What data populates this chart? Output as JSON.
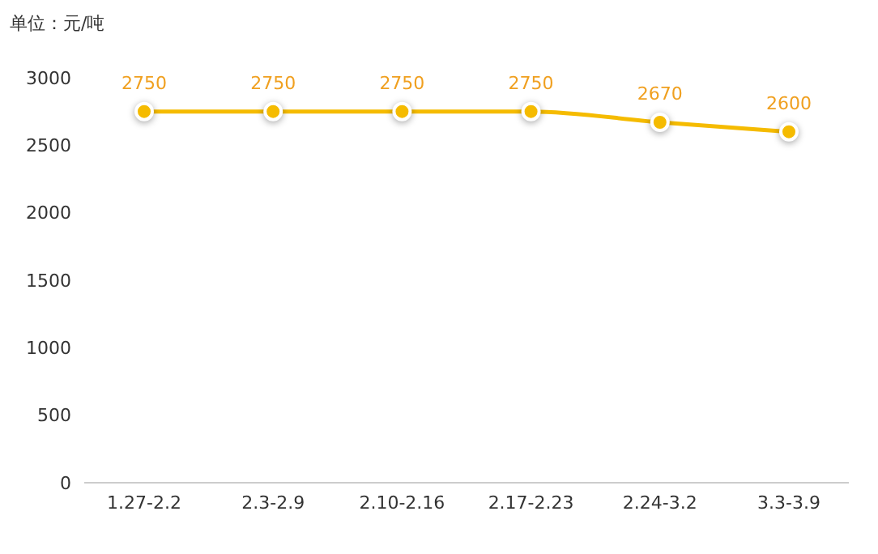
{
  "chart_data": {
    "type": "line",
    "ylabel": "单位：元/吨",
    "categories": [
      "1.27-2.2",
      "2.3-2.9",
      "2.10-2.16",
      "2.17-2.23",
      "2.24-3.2",
      "3.3-3.9"
    ],
    "series": [
      {
        "color": "#f5bb00",
        "values": [
          2750,
          2750,
          2750,
          2750,
          2670,
          2600
        ]
      }
    ],
    "ylim": [
      0,
      3000
    ],
    "yticks": [
      0,
      500,
      1000,
      1500,
      2000,
      2500,
      3000
    ],
    "grid": false,
    "legend": false,
    "marker": "circle",
    "line_style": "solid",
    "data_labels": true
  }
}
